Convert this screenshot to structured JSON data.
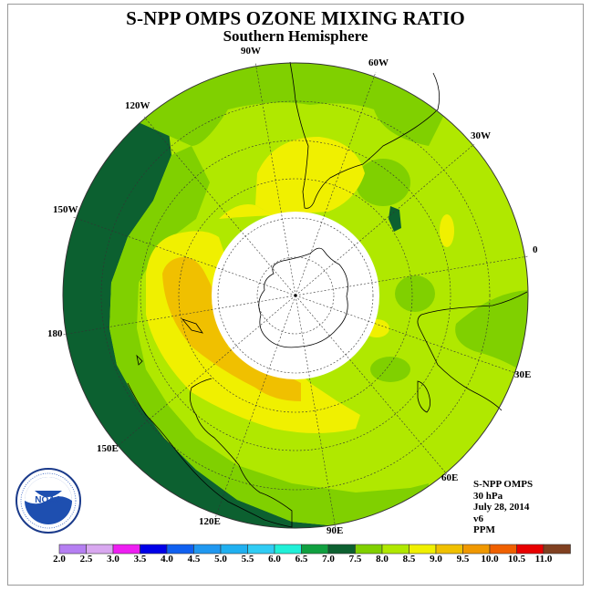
{
  "header": {
    "title": "S-NPP OMPS OZONE MIXING RATIO",
    "subtitle": "Southern Hemisphere"
  },
  "map": {
    "projection": "polar stereographic (south pole)",
    "center": "South Pole",
    "longitude_labels": {
      "lon_90w": "90W",
      "lon_60w": "60W",
      "lon_30w": "30W",
      "lon_0": "0",
      "lon_30e": "30E",
      "lon_60e": "60E",
      "lon_90e": "90E",
      "lon_120e": "120E",
      "lon_150e": "150E",
      "lon_180": "180",
      "lon_150w": "150W",
      "lon_120w": "120W"
    },
    "no_data_region": "polar night (white disk)"
  },
  "info": {
    "product": "S-NPP OMPS",
    "level": "30 hPa",
    "date": "July 28, 2014",
    "version": "v6",
    "units": "PPM"
  },
  "colorbar": {
    "tick_labels": [
      "2.0",
      "2.5",
      "3.0",
      "3.5",
      "4.0",
      "4.5",
      "5.0",
      "5.5",
      "6.0",
      "6.5",
      "7.0",
      "7.5",
      "8.0",
      "8.5",
      "9.0",
      "9.5",
      "10.0",
      "10.5",
      "11.0"
    ],
    "colors": [
      "#b57ff2",
      "#d9a8f0",
      "#ee1ef2",
      "#0000e8",
      "#1060f0",
      "#2098f0",
      "#20b0f0",
      "#30ccf4",
      "#20f0d8",
      "#10a040",
      "#0c6030",
      "#80d000",
      "#b0e800",
      "#f0f000",
      "#f0c000",
      "#f09800",
      "#f06000",
      "#e80000",
      "#804020"
    ]
  },
  "logo": {
    "text": "NOAA"
  }
}
